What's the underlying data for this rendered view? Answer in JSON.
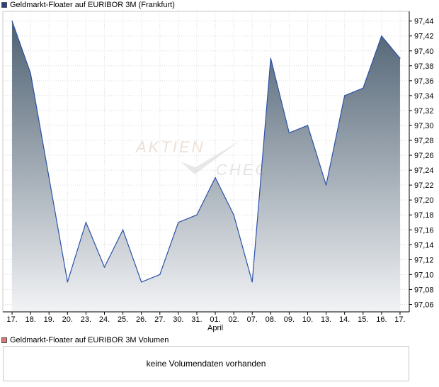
{
  "colors": {
    "price_legend": "#2d3f80",
    "volume_legend": "#d87878",
    "line": "#2c52a8",
    "fill_top": "#4e6172",
    "fill_bottom": "#f2f3f5"
  },
  "legend": {
    "price_title": "Geldmarkt-Floater auf EURIBOR 3M (Frankfurt)",
    "volume_title": "Geldmarkt-Floater auf EURIBOR 3M Volumen"
  },
  "watermark": {
    "line1": "AKTIEN",
    "line2": "CHECK"
  },
  "volume": {
    "message": "keine Volumendaten vorhanden"
  },
  "chart_data": {
    "type": "area",
    "x": [
      "17.",
      "18.",
      "19.",
      "20.",
      "23.",
      "24.",
      "25.",
      "26.",
      "27.",
      "30.",
      "31.",
      "01.",
      "02.",
      "07.",
      "08.",
      "09.",
      "10.",
      "13.",
      "14.",
      "15.",
      "16.",
      "17."
    ],
    "x_month_label": {
      "tick": "01.",
      "text": "April"
    },
    "series": [
      {
        "values": [
          97.44,
          97.37,
          97.23,
          97.09,
          97.17,
          97.11,
          97.16,
          97.09,
          97.1,
          97.17,
          97.18,
          97.23,
          97.18,
          97.09,
          97.39,
          97.29,
          97.3,
          97.22,
          97.34,
          97.35,
          97.42,
          97.39
        ]
      }
    ],
    "y_ticks": [
      "97,06",
      "97,08",
      "97,10",
      "97,12",
      "97,14",
      "97,16",
      "97,18",
      "97,20",
      "97,22",
      "97,24",
      "97,26",
      "97,28",
      "97,30",
      "97,32",
      "97,34",
      "97,36",
      "97,38",
      "97,40",
      "97,42",
      "97,44"
    ],
    "ylim": [
      97.05,
      97.453
    ],
    "grid": true,
    "y_axis_position": "right"
  }
}
